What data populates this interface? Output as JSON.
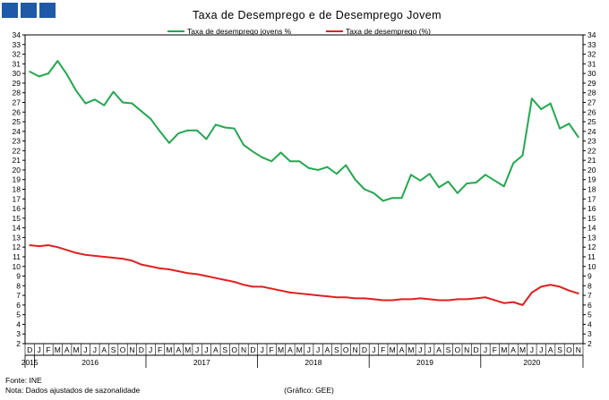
{
  "logo": {
    "color": "#1e5aa8"
  },
  "footer": {
    "source": "Fonte: INE",
    "note": "Nota: Dados ajustados de sazonalidade",
    "credit": "(Gráfico: GEE)"
  },
  "chart_data": {
    "type": "line",
    "title": "Taxa de Desemprego  e de Desemprego Jovem",
    "xlabel": "",
    "ylabel": "",
    "ylim": [
      2,
      34
    ],
    "y_ticks": [
      2,
      3,
      4,
      5,
      6,
      7,
      8,
      9,
      10,
      11,
      12,
      13,
      14,
      15,
      16,
      17,
      18,
      19,
      20,
      21,
      22,
      23,
      24,
      25,
      26,
      27,
      28,
      29,
      30,
      31,
      32,
      33,
      34
    ],
    "y_axis_both_sides": true,
    "grid": false,
    "legend_position": "top-center",
    "x": [
      "D",
      "J",
      "F",
      "M",
      "A",
      "M",
      "J",
      "J",
      "A",
      "S",
      "O",
      "N",
      "D",
      "J",
      "F",
      "M",
      "A",
      "M",
      "J",
      "J",
      "A",
      "S",
      "O",
      "N",
      "D",
      "J",
      "F",
      "M",
      "A",
      "M",
      "J",
      "J",
      "A",
      "S",
      "O",
      "N",
      "D",
      "J",
      "F",
      "M",
      "A",
      "M",
      "J",
      "J",
      "A",
      "S",
      "O",
      "N",
      "D",
      "J",
      "F",
      "M",
      "A",
      "M",
      "J",
      "J",
      "A",
      "S",
      "O",
      "N"
    ],
    "years": [
      {
        "label": "2015",
        "start": 0,
        "end": 0
      },
      {
        "label": "2016",
        "start": 1,
        "end": 12
      },
      {
        "label": "2017",
        "start": 13,
        "end": 24
      },
      {
        "label": "2018",
        "start": 25,
        "end": 36
      },
      {
        "label": "2019",
        "start": 37,
        "end": 48
      },
      {
        "label": "2020",
        "start": 49,
        "end": 59
      }
    ],
    "series": [
      {
        "name": "Taxa de desemprego jovens %",
        "color": "#22a84e",
        "values": [
          30.2,
          29.7,
          30.0,
          31.3,
          29.9,
          28.2,
          26.9,
          27.3,
          26.7,
          28.1,
          27.0,
          26.9,
          26.1,
          25.3,
          24.0,
          22.8,
          23.8,
          24.1,
          24.1,
          23.2,
          24.7,
          24.4,
          24.3,
          22.6,
          21.9,
          21.3,
          20.9,
          21.8,
          20.9,
          20.9,
          20.2,
          20.0,
          20.3,
          19.6,
          20.5,
          19.0,
          18.0,
          17.6,
          16.8,
          17.1,
          17.1,
          19.5,
          18.9,
          19.6,
          18.2,
          18.8,
          17.6,
          18.6,
          18.7,
          19.5,
          18.9,
          18.3,
          20.7,
          21.5,
          27.4,
          26.3,
          26.9,
          24.3,
          24.8,
          23.4
        ]
      },
      {
        "name": "Taxa de desemprego (%)",
        "color": "#e0201e",
        "values": [
          12.2,
          12.1,
          12.2,
          12.0,
          11.7,
          11.4,
          11.2,
          11.1,
          11.0,
          10.9,
          10.8,
          10.6,
          10.2,
          10.0,
          9.8,
          9.7,
          9.5,
          9.3,
          9.2,
          9.0,
          8.8,
          8.6,
          8.4,
          8.1,
          7.9,
          7.9,
          7.7,
          7.5,
          7.3,
          7.2,
          7.1,
          7.0,
          6.9,
          6.8,
          6.8,
          6.7,
          6.7,
          6.6,
          6.5,
          6.5,
          6.6,
          6.6,
          6.7,
          6.6,
          6.5,
          6.5,
          6.6,
          6.6,
          6.7,
          6.8,
          6.5,
          6.2,
          6.3,
          6.0,
          7.3,
          7.9,
          8.1,
          7.9,
          7.5,
          7.2
        ]
      }
    ]
  }
}
